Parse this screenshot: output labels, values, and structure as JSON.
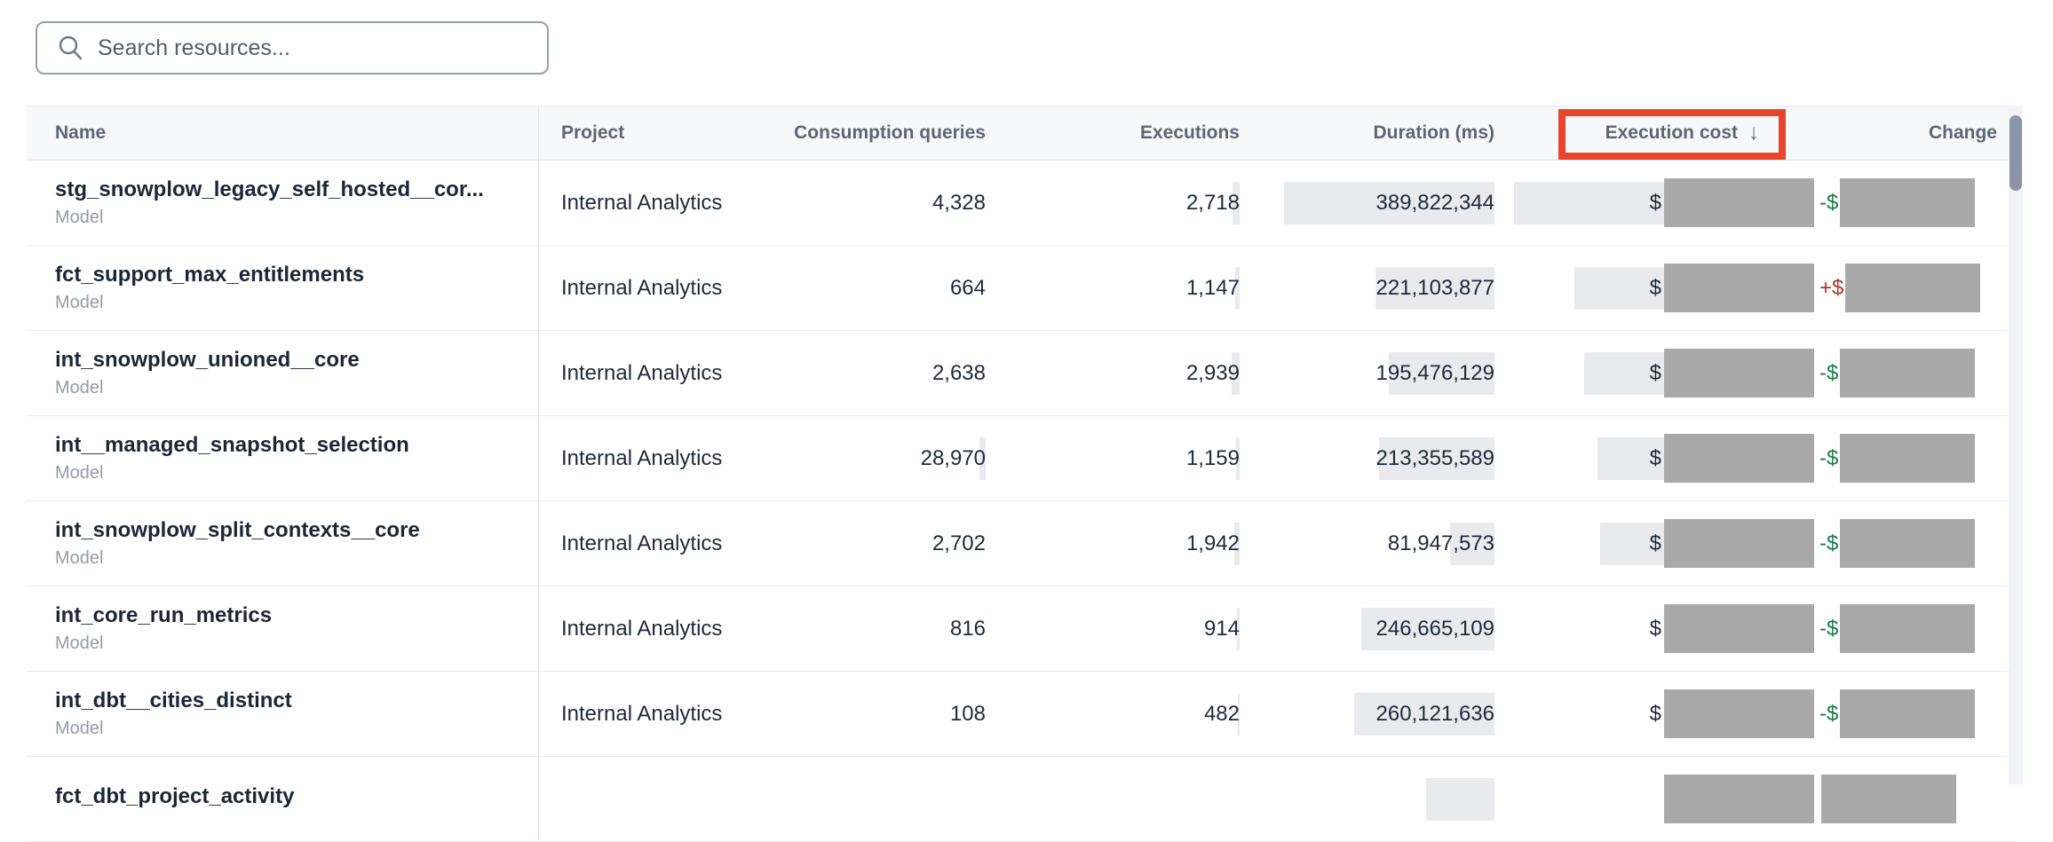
{
  "search": {
    "placeholder": "Search resources..."
  },
  "table": {
    "columns": [
      {
        "key": "name",
        "label": "Name"
      },
      {
        "key": "project",
        "label": "Project"
      },
      {
        "key": "queries",
        "label": "Consumption queries"
      },
      {
        "key": "executions",
        "label": "Executions"
      },
      {
        "key": "duration",
        "label": "Duration (ms)"
      },
      {
        "key": "cost",
        "label": "Execution cost",
        "sort_arrow": "↓",
        "annotated": true
      },
      {
        "key": "change",
        "label": "Change"
      }
    ],
    "sort": {
      "column": "Execution cost",
      "direction": "descending"
    },
    "rows": [
      {
        "name": "stg_snowplow_legacy_self_hosted__cor...",
        "type": "Model",
        "project": "Internal Analytics",
        "queries": "4,328",
        "executions": "2,718",
        "duration": "389,822,344",
        "cost_sign": "$",
        "change_sign": "-$",
        "change_dir": "down",
        "bars": {
          "queries": 1,
          "executions": 8,
          "duration": 237,
          "cost": 135
        },
        "redacted": {
          "cost": true,
          "change": true
        }
      },
      {
        "name": "fct_support_max_entitlements",
        "type": "Model",
        "project": "Internal Analytics",
        "queries": "664",
        "executions": "1,147",
        "duration": "221,103,877",
        "cost_sign": "$",
        "change_sign": "+$",
        "change_dir": "up",
        "bars": {
          "queries": 0,
          "executions": 5,
          "duration": 134,
          "cost": 67
        },
        "redacted": {
          "cost": true,
          "change": true
        }
      },
      {
        "name": "int_snowplow_unioned__core",
        "type": "Model",
        "project": "Internal Analytics",
        "queries": "2,638",
        "executions": "2,939",
        "duration": "195,476,129",
        "cost_sign": "$",
        "change_sign": "-$",
        "change_dir": "down",
        "bars": {
          "queries": 1,
          "executions": 9,
          "duration": 119,
          "cost": 56
        },
        "redacted": {
          "cost": true,
          "change": true
        }
      },
      {
        "name": "int__managed_snapshot_selection",
        "type": "Model",
        "project": "Internal Analytics",
        "queries": "28,970",
        "executions": "1,159",
        "duration": "213,355,589",
        "cost_sign": "$",
        "change_sign": "-$",
        "change_dir": "down",
        "bars": {
          "queries": 7,
          "executions": 4,
          "duration": 130,
          "cost": 41
        },
        "redacted": {
          "cost": true,
          "change": true
        }
      },
      {
        "name": "int_snowplow_split_contexts__core",
        "type": "Model",
        "project": "Internal Analytics",
        "queries": "2,702",
        "executions": "1,942",
        "duration": "81,947,573",
        "cost_sign": "$",
        "change_sign": "-$",
        "change_dir": "down",
        "bars": {
          "queries": 1,
          "executions": 6,
          "duration": 50,
          "cost": 38
        },
        "redacted": {
          "cost": true,
          "change": true
        }
      },
      {
        "name": "int_core_run_metrics",
        "type": "Model",
        "project": "Internal Analytics",
        "queries": "816",
        "executions": "914",
        "duration": "246,665,109",
        "cost_sign": "$",
        "change_sign": "-$",
        "change_dir": "down",
        "bars": {
          "queries": 0,
          "executions": 3,
          "duration": 150,
          "cost": 0
        },
        "redacted": {
          "cost": true,
          "change": true
        }
      },
      {
        "name": "int_dbt__cities_distinct",
        "type": "Model",
        "project": "Internal Analytics",
        "queries": "108",
        "executions": "482",
        "duration": "260,121,636",
        "cost_sign": "$",
        "change_sign": "-$",
        "change_dir": "down",
        "bars": {
          "queries": 0,
          "executions": 2,
          "duration": 158,
          "cost": 0
        },
        "redacted": {
          "cost": true,
          "change": true
        }
      },
      {
        "name": "fct_dbt_project_activity",
        "type": "",
        "project": "",
        "queries": "",
        "executions": "",
        "duration": "",
        "cost_sign": "",
        "change_sign": "",
        "change_dir": "none",
        "bars": {
          "queries": 0,
          "executions": 0,
          "duration": 77,
          "cost": 0
        },
        "redacted": {
          "cost": true,
          "change": true
        }
      }
    ]
  },
  "annotation": {
    "target": "Execution cost column header",
    "box_color": "#e8452c"
  },
  "colors": {
    "change_decrease": "#1a7a4f",
    "change_increase": "#b5332d",
    "redaction_gray": "#a9a9a9",
    "cell_highlight": "#e9eaed",
    "header_bg": "#f7f8f9"
  },
  "scrollbar": {
    "visible": true,
    "position": "top"
  }
}
